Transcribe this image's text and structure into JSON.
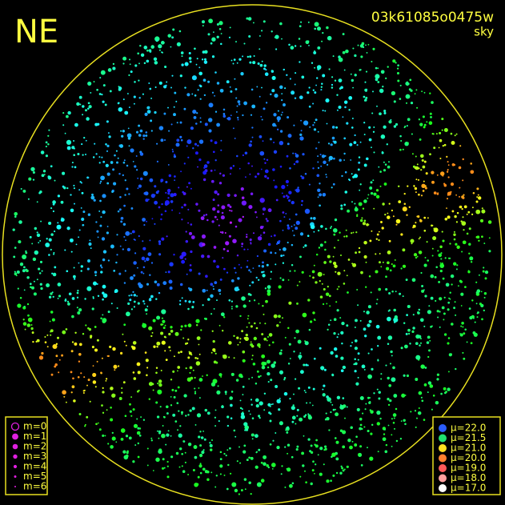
{
  "corner_label": "NE",
  "title": "03k61085o0475w",
  "subtitle": "sky",
  "magnitude_legend": {
    "items": [
      "m=0",
      "m=1",
      "m=2",
      "m=3",
      "m=4",
      "m=5",
      "m=6"
    ],
    "color": "#e020e0"
  },
  "brightness_legend": {
    "items": [
      {
        "label": "μ=22.0",
        "color": "#2a5cff"
      },
      {
        "label": "μ=21.5",
        "color": "#20e070"
      },
      {
        "label": "μ=21.0",
        "color": "#ffe020"
      },
      {
        "label": "μ=20.0",
        "color": "#ff8030"
      },
      {
        "label": "μ=19.0",
        "color": "#ff5a5a"
      },
      {
        "label": "μ=18.0",
        "color": "#ffa0a0"
      },
      {
        "label": "μ=17.0",
        "color": "#ffffff"
      }
    ]
  }
}
